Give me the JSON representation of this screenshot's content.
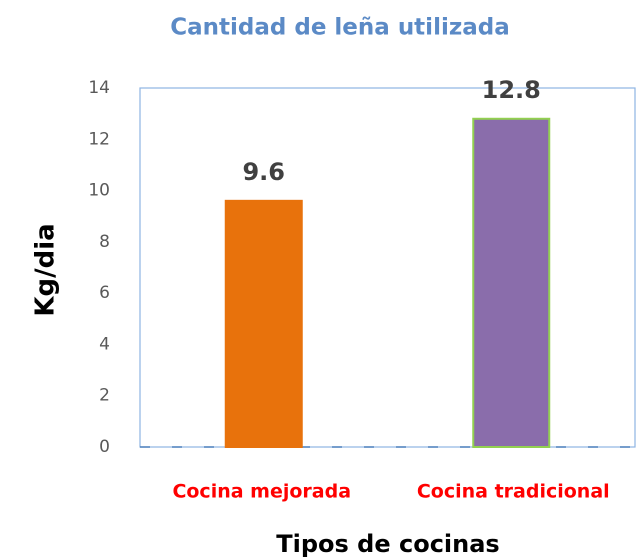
{
  "chart_data": {
    "type": "bar",
    "title": "Cantidad de leña utilizada",
    "xlabel": "Tipos de cocinas",
    "ylabel": "Kg/dia",
    "categories": [
      "Cocina mejorada",
      "Cocina tradicional"
    ],
    "values": [
      9.6,
      12.8
    ],
    "colors": [
      "#e8720c",
      "#8a6dab"
    ],
    "edgecolors": [
      "#e8720c",
      "#92d050"
    ],
    "ylim": [
      0,
      14
    ],
    "yticks": [
      0,
      2,
      4,
      6,
      8,
      10,
      12,
      14
    ],
    "grid": false
  }
}
